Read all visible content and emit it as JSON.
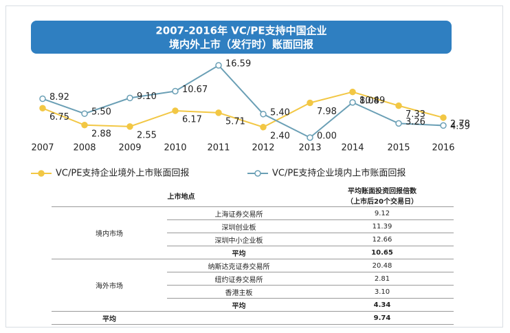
{
  "chart_data": {
    "type": "line",
    "title": [
      "2007-2016年 VC/PE支持中国企业",
      "境内外上市（发行时）账面回报"
    ],
    "categories": [
      "2007",
      "2008",
      "2009",
      "2010",
      "2011",
      "2012",
      "2013",
      "2014",
      "2015",
      "2016"
    ],
    "series": [
      {
        "name": "VC/PE支持企业境外上市账面回报",
        "color": "#f2c744",
        "values": [
          6.75,
          2.88,
          2.55,
          6.17,
          5.71,
          2.4,
          7.98,
          10.49,
          7.33,
          4.59
        ],
        "value_labels": [
          "6.75",
          "2.88",
          "2.55",
          "6.17",
          "5.71",
          "2.40",
          "7.98",
          "10.49",
          "7.33",
          "4.59"
        ]
      },
      {
        "name": "VC/PE支持企业境内上市账面回报",
        "color": "#6a9fb5",
        "values": [
          8.92,
          5.5,
          9.1,
          10.67,
          16.59,
          5.4,
          0,
          8.08,
          3.26,
          2.78
        ],
        "value_labels": [
          "8.92",
          "5.50",
          "9.10",
          "10.67",
          "16.59",
          "5.40",
          "0.00",
          "8.08",
          "3.26",
          "2.78"
        ]
      }
    ]
  },
  "table": {
    "header": [
      "上市地点",
      [
        "平均账面投资回报倍数",
        "（上市后20个交易日）"
      ]
    ],
    "groups": [
      {
        "market": "境内市场",
        "rows": [
          [
            "上海证券交易所",
            "9.12"
          ],
          [
            "深圳创业板",
            "11.39"
          ],
          [
            "深圳中小企业板",
            "12.66"
          ]
        ],
        "average": [
          "平均",
          "10.65"
        ]
      },
      {
        "market": "海外市场",
        "rows": [
          [
            "纳斯达克证券交易所",
            "20.48"
          ],
          [
            "纽约证券交易所",
            "2.81"
          ],
          [
            "香港主板",
            "3.10"
          ]
        ],
        "average": [
          "平均",
          "4.34"
        ]
      }
    ],
    "total": [
      "平均",
      "9.74"
    ]
  }
}
